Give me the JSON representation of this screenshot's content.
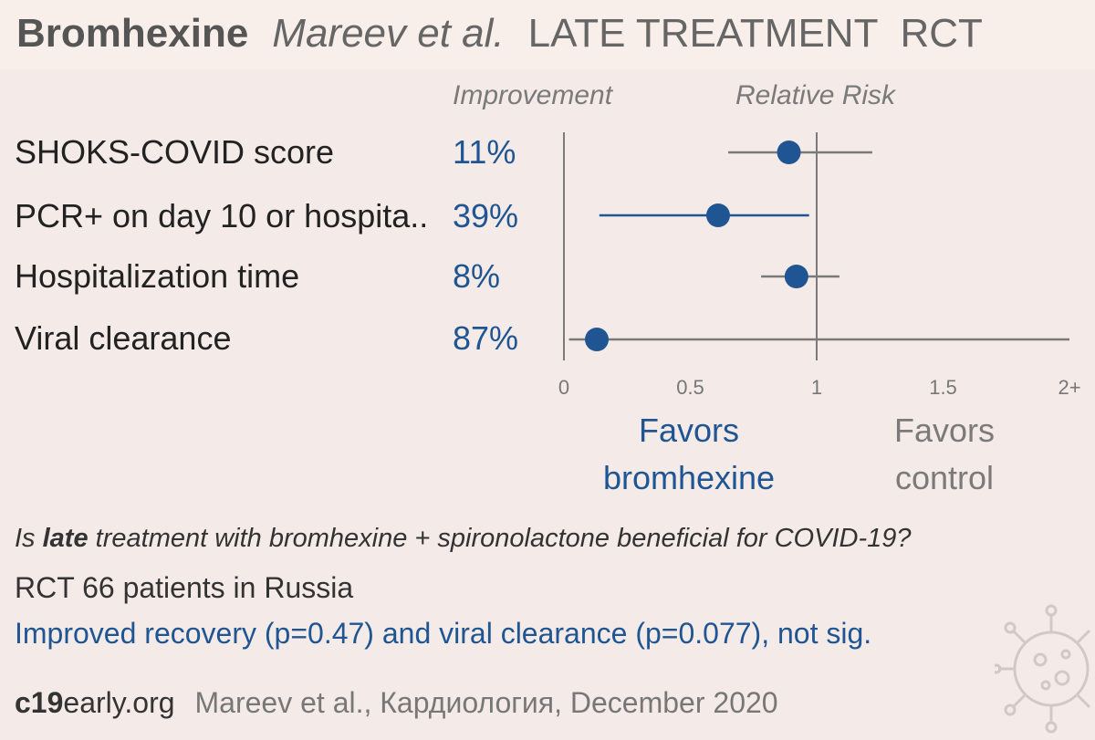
{
  "header": {
    "drug": "Bromhexine",
    "author": "Mareev et al.",
    "stage": "LATE TREATMENT",
    "design": "RCT"
  },
  "columns": {
    "improvement": "Improvement",
    "relative_risk": "Relative Risk"
  },
  "chart_data": {
    "type": "forest",
    "xlim": [
      0,
      2
    ],
    "x_ticks": [
      0,
      0.5,
      1,
      1.5,
      2
    ],
    "x_tick_labels": [
      "0",
      "0.5",
      "1",
      "1.5",
      "2+"
    ],
    "reference_line": 1,
    "grid": false,
    "rows": [
      {
        "label": "SHOKS-COVID score",
        "improvement": "11%",
        "rr": 0.89,
        "ci": [
          0.65,
          1.22
        ],
        "color": "#1f5592",
        "ci_color": "#7a7a7a"
      },
      {
        "label": "PCR+ on day 10 or hospita..",
        "improvement": "39%",
        "rr": 0.61,
        "ci": [
          0.14,
          0.97
        ],
        "color": "#1f5592",
        "ci_color": "#1f5592"
      },
      {
        "label": "Hospitalization time",
        "improvement": "8%",
        "rr": 0.92,
        "ci": [
          0.78,
          1.09
        ],
        "color": "#1f5592",
        "ci_color": "#7a7a7a"
      },
      {
        "label": "Viral clearance",
        "improvement": "87%",
        "rr": 0.13,
        "ci": [
          0.02,
          2.0
        ],
        "color": "#1f5592",
        "ci_color": "#7a7a7a"
      }
    ],
    "favors_left": "Favors bromhexine",
    "favors_right": "Favors control"
  },
  "favors": {
    "left_line1": "Favors",
    "left_line2": "bromhexine",
    "right_line1": "Favors",
    "right_line2": "control"
  },
  "summary": {
    "question_pre": "Is ",
    "question_bold": "late",
    "question_post": " treatment with bromhexine + spironolactone beneficial for COVID-19?",
    "design": "RCT 66 patients in Russia",
    "conclusion": "Improved recovery (p=0.47) and viral clearance (p=0.077), not sig."
  },
  "footer": {
    "site_bold": "c19",
    "site_rest": "early.org",
    "citation": "Mareev et al., Кардиология, December 2020"
  },
  "colors": {
    "accent": "#1f5592",
    "background": "#f4ebe8",
    "header_bg": "#f8eeea",
    "axis": "#7a7a7a"
  }
}
